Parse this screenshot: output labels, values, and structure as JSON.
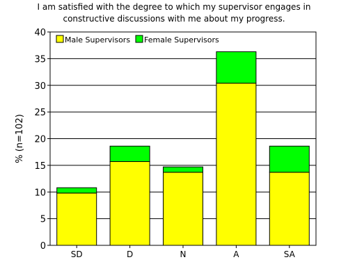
{
  "chart_data": {
    "type": "bar",
    "stacked": true,
    "title_lines": [
      "I am satisfied with the degree to which my supervisor engages in",
      "constructive discussions with me about my progress."
    ],
    "xlabel": "",
    "ylabel": "% (n=102)",
    "categories": [
      "SD",
      "D",
      "N",
      "A",
      "SA"
    ],
    "series": [
      {
        "name": "Male Supervisors",
        "color": "#ffff00",
        "values": [
          9.8,
          15.7,
          13.7,
          30.4,
          13.7
        ]
      },
      {
        "name": "Female Supervisors",
        "color": "#00ff00",
        "values": [
          1.0,
          2.9,
          1.0,
          5.9,
          4.9
        ]
      }
    ],
    "ylim": [
      0,
      40
    ],
    "yticks": [
      0,
      5,
      10,
      15,
      20,
      25,
      30,
      35,
      40
    ],
    "grid": "horizontal",
    "legend": "top-left"
  }
}
